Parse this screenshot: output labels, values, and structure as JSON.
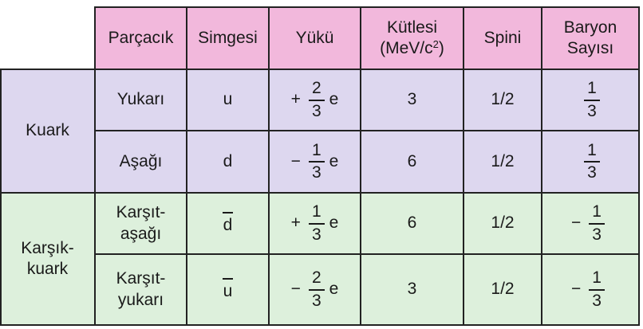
{
  "headers": {
    "particle": "Parçacık",
    "symbol": "Simgesi",
    "charge": "Yükü",
    "mass_line1": "Kütlesi",
    "mass_line2_pre": "(MeV/c",
    "mass_line2_sup": "2",
    "mass_line2_post": ")",
    "spin": "Spini",
    "baryon_line1": "Baryon",
    "baryon_line2": "Sayısı"
  },
  "groups": {
    "quark": "Kuark",
    "antiquark_line1": "Karşık-",
    "antiquark_line2": "kuark"
  },
  "rows": [
    {
      "name_line1": "Yukarı",
      "name_line2": "",
      "symbol": "u",
      "charge_sign": "+",
      "charge_num": "2",
      "charge_den": "3",
      "charge_unit": "e",
      "mass": "3",
      "spin": "1/2",
      "baryon_sign": "",
      "baryon_num": "1",
      "baryon_den": "3"
    },
    {
      "name_line1": "Aşağı",
      "name_line2": "",
      "symbol": "d",
      "charge_sign": "−",
      "charge_num": "1",
      "charge_den": "3",
      "charge_unit": "e",
      "mass": "6",
      "spin": "1/2",
      "baryon_sign": "",
      "baryon_num": "1",
      "baryon_den": "3"
    },
    {
      "name_line1": "Karşıt-",
      "name_line2": "aşağı",
      "symbol": "d",
      "charge_sign": "+",
      "charge_num": "1",
      "charge_den": "3",
      "charge_unit": "e",
      "mass": "6",
      "spin": "1/2",
      "baryon_sign": "−",
      "baryon_num": "1",
      "baryon_den": "3"
    },
    {
      "name_line1": "Karşıt-",
      "name_line2": "yukarı",
      "symbol": "u",
      "charge_sign": "−",
      "charge_num": "2",
      "charge_den": "3",
      "charge_unit": "e",
      "mass": "3",
      "spin": "1/2",
      "baryon_sign": "−",
      "baryon_num": "1",
      "baryon_den": "3"
    }
  ]
}
